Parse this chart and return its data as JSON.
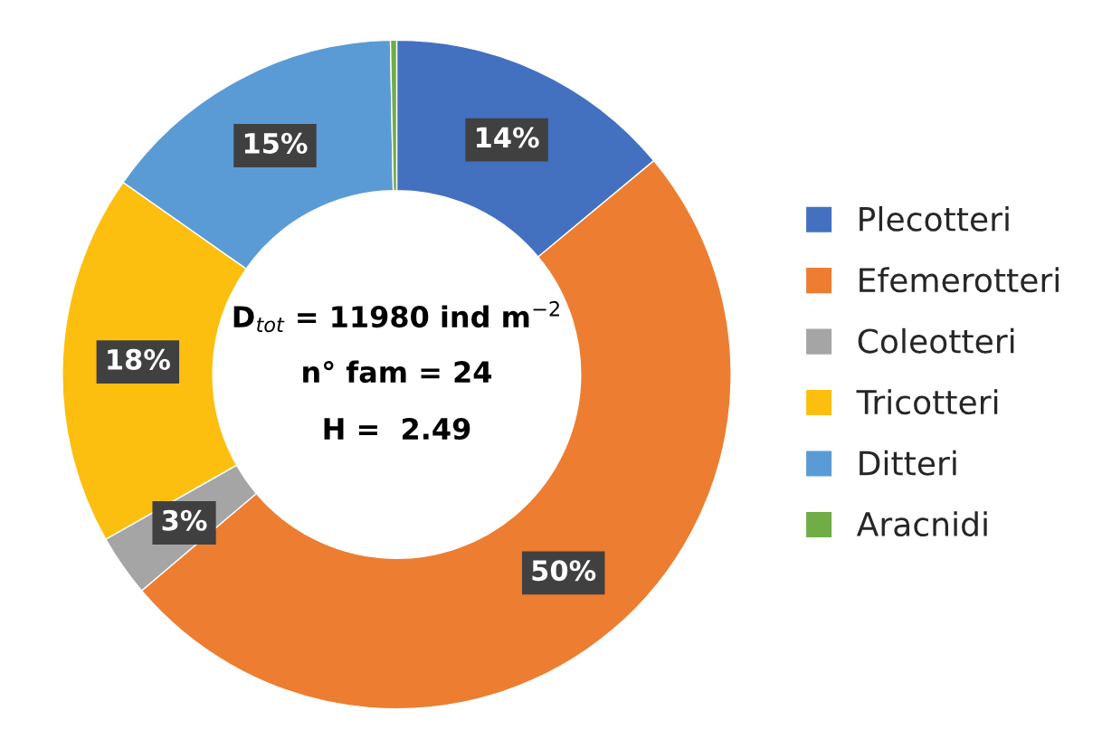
{
  "chart_data": {
    "type": "donut",
    "categories": [
      "Plecotteri",
      "Efemerotteri",
      "Coleotteri",
      "Tricotteri",
      "Ditteri",
      "Aracnidi"
    ],
    "values": [
      14,
      50,
      3,
      18,
      15,
      0.3
    ],
    "value_labels": [
      "14%",
      "50%",
      "3%",
      "18%",
      "15%",
      null
    ],
    "colors": [
      "#4470c0",
      "#ed7d31",
      "#a5a5a5",
      "#fcbf10",
      "#5b9bd5",
      "#70ad47"
    ],
    "annotations": [
      "D$_{tot}$ = 11980 ind m$^{−2}$",
      "n° fam = 24",
      "H =  2.49"
    ],
    "legend": "right"
  }
}
